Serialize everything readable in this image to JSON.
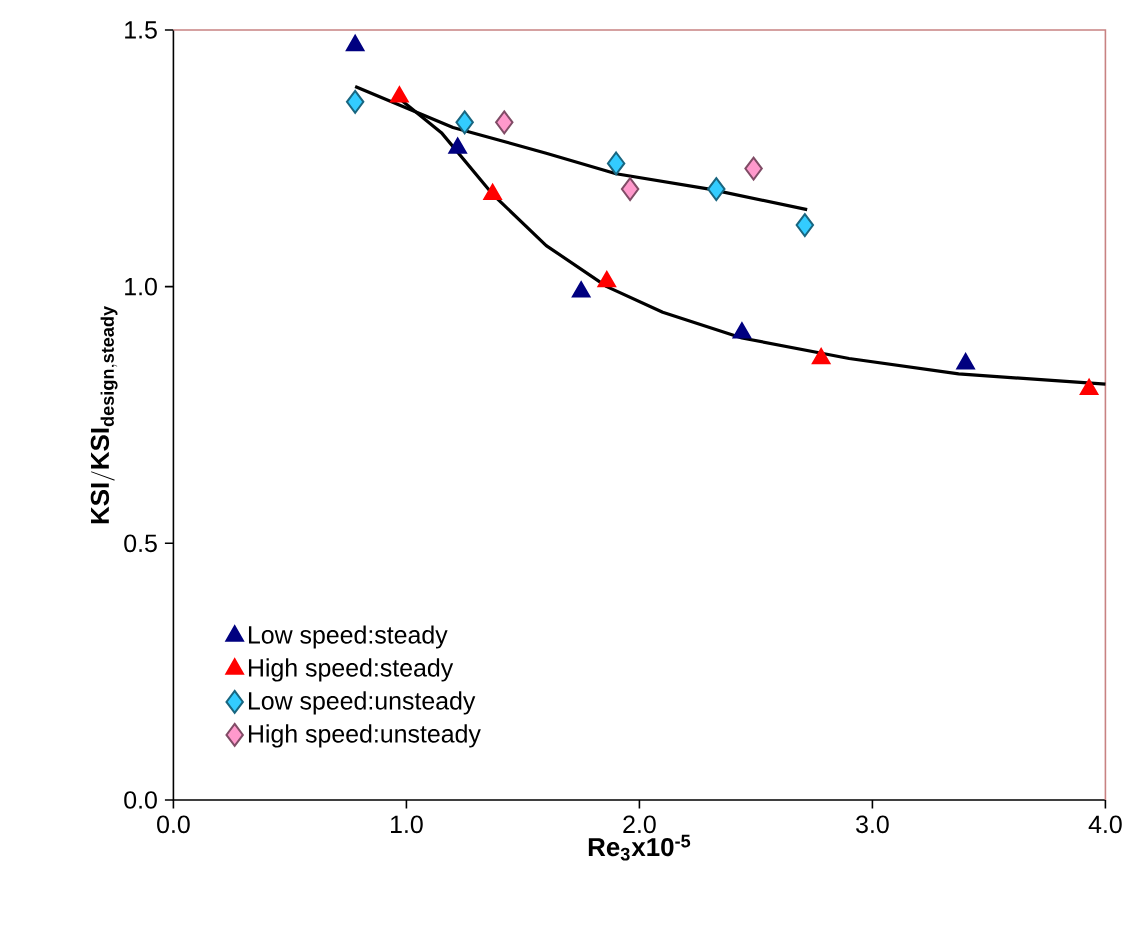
{
  "chart_data": {
    "type": "scatter",
    "xlabel": "**Re$_{3}$x10$^{-5}$**",
    "ylabel": "\\mathbf{KSI/KSI_{design,steady}}",
    "xlim": [
      0,
      4
    ],
    "ylim": [
      0,
      1.5
    ],
    "xticks": [
      {
        "value": 0,
        "label": "0.0"
      },
      {
        "value": 1,
        "label": "1.0"
      },
      {
        "value": 2,
        "label": "2.0"
      },
      {
        "value": 3,
        "label": "3.0"
      },
      {
        "value": 4,
        "label": "4.0"
      }
    ],
    "yticks": [
      {
        "value": 0,
        "label": "0.0"
      },
      {
        "value": 0.5,
        "label": "0.5"
      },
      {
        "value": 1,
        "label": "1.0"
      },
      {
        "value": 1.5,
        "label": "1.5"
      }
    ],
    "grid": false,
    "legend": "bottom left",
    "series": [
      {
        "name": "Low speed:steady",
        "color": "#000080",
        "marker": "triangle",
        "x": [
          0.78,
          1.22,
          1.75,
          2.44,
          3.4
        ],
        "values": [
          1.47,
          1.27,
          0.99,
          0.91,
          0.85
        ]
      },
      {
        "name": "High speed:steady",
        "color": "#ff0000",
        "marker": "triangle",
        "x": [
          0.97,
          1.37,
          1.86,
          2.78,
          3.93
        ],
        "values": [
          1.37,
          1.18,
          1.01,
          0.86,
          0.8
        ]
      },
      {
        "name": "Low speed:unsteady",
        "color": "#33ccff",
        "marker": "diamond",
        "x": [
          0.78,
          1.25,
          1.9,
          2.33,
          2.71
        ],
        "values": [
          1.36,
          1.32,
          1.24,
          1.19,
          1.12
        ]
      },
      {
        "name": "High speed:unsteady",
        "color": "#ff99cc",
        "marker": "diamond",
        "x": [
          1.42,
          1.96,
          2.49
        ],
        "values": [
          1.32,
          1.19,
          1.23
        ]
      },
      {
        "type": "line",
        "color": "#000000",
        "marker": "none",
        "x": [
          0.78,
          1.2,
          1.6,
          1.9,
          2.3,
          2.72
        ],
        "values": [
          1.39,
          1.31,
          1.26,
          1.22,
          1.19,
          1.15
        ]
      },
      {
        "type": "line",
        "color": "#000000",
        "marker": "none",
        "x": [
          0.96,
          1.15,
          1.37,
          1.6,
          1.86,
          2.1,
          2.44,
          2.9,
          3.37,
          4.0
        ],
        "values": [
          1.37,
          1.3,
          1.18,
          1.08,
          1.0,
          0.95,
          0.9,
          0.86,
          0.83,
          0.81
        ]
      }
    ]
  }
}
